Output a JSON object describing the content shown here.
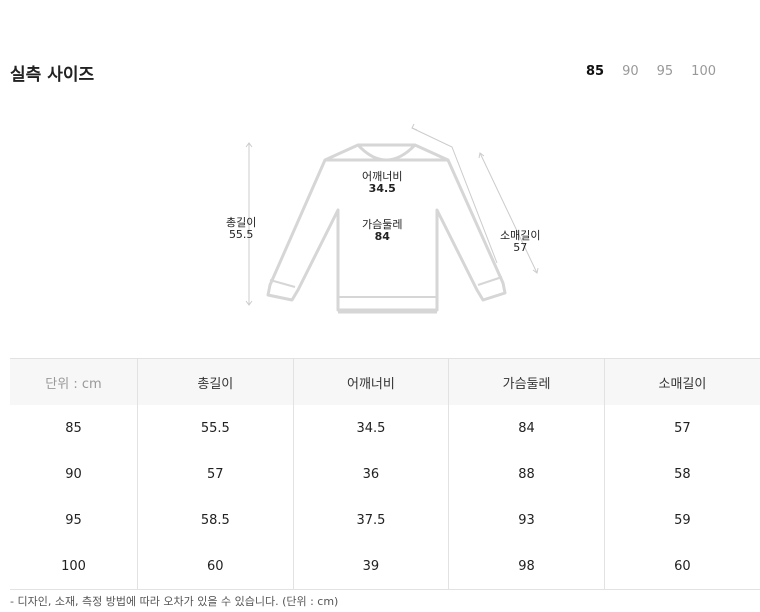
{
  "title": "실측 사이즈",
  "size_options": [
    {
      "label": "85",
      "selected": true
    },
    {
      "label": "90",
      "selected": false
    },
    {
      "label": "95",
      "selected": false
    },
    {
      "label": "100",
      "selected": false
    }
  ],
  "diagram": {
    "total_length": {
      "label": "총길이",
      "value": "55.5"
    },
    "shoulder": {
      "label": "어깨너비",
      "value": "34.5"
    },
    "chest": {
      "label": "가슴둘레",
      "value": "84"
    },
    "sleeve": {
      "label": "소매길이",
      "value": "57"
    }
  },
  "table": {
    "headers": [
      "단위 : cm",
      "총길이",
      "어깨너비",
      "가슴둘레",
      "소매길이"
    ],
    "rows": [
      [
        "85",
        "55.5",
        "34.5",
        "84",
        "57"
      ],
      [
        "90",
        "57",
        "36",
        "88",
        "58"
      ],
      [
        "95",
        "58.5",
        "37.5",
        "93",
        "59"
      ],
      [
        "100",
        "60",
        "39",
        "98",
        "60"
      ]
    ]
  },
  "note": "- 디자인, 소재, 측정 방법에 따라 오차가 있을 수 있습니다. (단위 : cm)"
}
